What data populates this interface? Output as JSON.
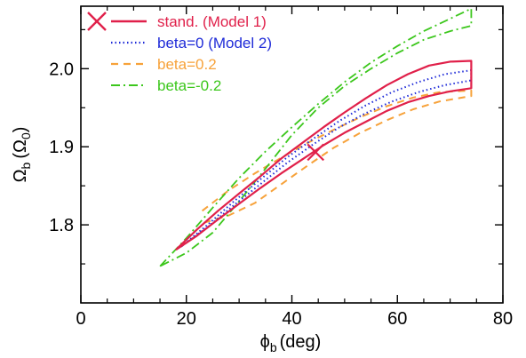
{
  "chart_data": {
    "type": "line",
    "xlabel": "ϕ",
    "xlabel_sub": "b",
    "xlabel_unit": "(deg)",
    "ylabel": "Ω",
    "ylabel_sub": "b",
    "ylabel_unit_open": "(Ω",
    "ylabel_unit_sub": "0",
    "ylabel_unit_close": ")",
    "xlim": [
      0,
      80
    ],
    "ylim": [
      1.7,
      2.08
    ],
    "xticks": [
      0,
      20,
      40,
      60,
      80
    ],
    "xtick_labels": [
      "0",
      "20",
      "40",
      "60",
      "80"
    ],
    "yticks": [
      1.8,
      1.9,
      2.0
    ],
    "ytick_labels": [
      "1.8",
      "1.9",
      "2.0"
    ],
    "grid": false,
    "legend_position": "top-left",
    "series": [
      {
        "name": "stand. (Model 1)",
        "color": "#e0204a",
        "style": "solid",
        "points": [
          [
            18,
            1.768
          ],
          [
            22,
            1.794
          ],
          [
            26,
            1.818
          ],
          [
            30,
            1.84
          ],
          [
            34,
            1.862
          ],
          [
            38,
            1.885
          ],
          [
            42,
            1.905
          ],
          [
            46,
            1.925
          ],
          [
            50,
            1.944
          ],
          [
            54,
            1.962
          ],
          [
            58,
            1.979
          ],
          [
            62,
            1.993
          ],
          [
            66,
            2.004
          ],
          [
            70,
            2.009
          ],
          [
            74,
            2.01
          ],
          [
            74,
            1.975
          ],
          [
            70,
            1.971
          ],
          [
            66,
            1.965
          ],
          [
            62,
            1.957
          ],
          [
            58,
            1.946
          ],
          [
            54,
            1.932
          ],
          [
            50,
            1.918
          ],
          [
            46,
            1.902
          ],
          [
            42,
            1.884
          ],
          [
            38,
            1.866
          ],
          [
            34,
            1.847
          ],
          [
            30,
            1.827
          ],
          [
            26,
            1.807
          ],
          [
            22,
            1.786
          ],
          [
            18,
            1.768
          ]
        ]
      },
      {
        "name": "beta=0 (Model 2)",
        "color": "#1f2bd8",
        "style": "dotted",
        "points": [
          [
            19,
            1.772
          ],
          [
            24,
            1.8
          ],
          [
            29,
            1.83
          ],
          [
            34,
            1.858
          ],
          [
            39,
            1.886
          ],
          [
            44,
            1.91
          ],
          [
            49,
            1.933
          ],
          [
            54,
            1.953
          ],
          [
            59,
            1.97
          ],
          [
            64,
            1.983
          ],
          [
            69,
            1.993
          ],
          [
            74,
            1.998
          ],
          [
            74,
            1.985
          ],
          [
            69,
            1.979
          ],
          [
            64,
            1.97
          ],
          [
            59,
            1.958
          ],
          [
            54,
            1.943
          ],
          [
            49,
            1.925
          ],
          [
            44,
            1.903
          ],
          [
            39,
            1.879
          ],
          [
            34,
            1.852
          ],
          [
            29,
            1.825
          ],
          [
            24,
            1.797
          ],
          [
            19,
            1.772
          ]
        ]
      },
      {
        "name": "beta=0.2",
        "color": "#f7a23a",
        "style": "dashed",
        "points": [
          [
            23,
            1.818
          ],
          [
            28,
            1.844
          ],
          [
            33,
            1.866
          ],
          [
            38,
            1.886
          ],
          [
            43,
            1.905
          ],
          [
            48,
            1.922
          ],
          [
            53,
            1.938
          ],
          [
            58,
            1.952
          ],
          [
            63,
            1.963
          ],
          [
            68,
            1.97
          ],
          [
            74,
            1.972
          ],
          [
            74,
            1.965
          ],
          [
            68,
            1.958
          ],
          [
            63,
            1.948
          ],
          [
            58,
            1.934
          ],
          [
            53,
            1.918
          ],
          [
            48,
            1.899
          ],
          [
            43,
            1.876
          ],
          [
            38,
            1.852
          ],
          [
            33,
            1.828
          ],
          [
            28,
            1.812
          ],
          [
            23,
            1.802
          ]
        ]
      },
      {
        "name": "beta=-0.2",
        "color": "#3cc71c",
        "style": "dashdot",
        "points": [
          [
            15,
            1.747
          ],
          [
            20,
            1.783
          ],
          [
            25,
            1.822
          ],
          [
            30,
            1.86
          ],
          [
            35,
            1.894
          ],
          [
            40,
            1.925
          ],
          [
            45,
            1.955
          ],
          [
            50,
            1.983
          ],
          [
            55,
            2.008
          ],
          [
            60,
            2.029
          ],
          [
            65,
            2.048
          ],
          [
            70,
            2.064
          ],
          [
            74,
            2.077
          ],
          [
            74,
            2.055
          ],
          [
            70,
            2.048
          ],
          [
            65,
            2.037
          ],
          [
            60,
            2.02
          ],
          [
            55,
            2.0
          ],
          [
            50,
            1.978
          ],
          [
            45,
            1.95
          ],
          [
            40,
            1.915
          ],
          [
            35,
            1.872
          ],
          [
            30,
            1.83
          ],
          [
            25,
            1.79
          ],
          [
            20,
            1.764
          ],
          [
            15,
            1.747
          ]
        ]
      }
    ],
    "markers": [
      {
        "x": 44.5,
        "y": 1.893,
        "symbol": "X",
        "color": "#e0204a"
      }
    ]
  }
}
